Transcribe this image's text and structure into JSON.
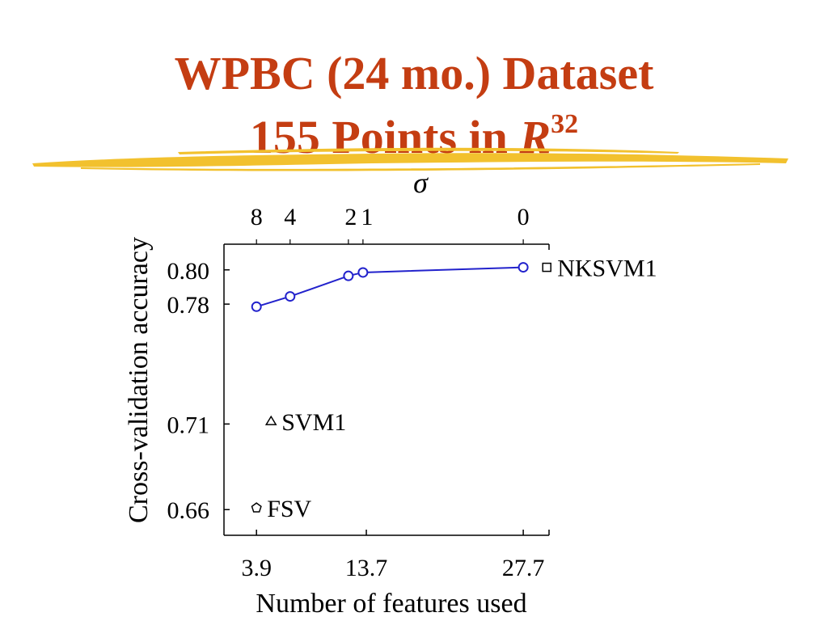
{
  "slide": {
    "title_line1": "WPBC (24 mo.) Dataset",
    "title_line2_prefix": "155 Points in ",
    "title_line2_var": "R",
    "title_line2_sup": "32",
    "highlight_color": "#f2c12e",
    "title_color": "#c43d12"
  },
  "chart_data": {
    "type": "line",
    "title": "",
    "xlabel": "Number of features used",
    "ylabel": "Cross-validation accuracy",
    "top_axis_label": "σ",
    "xlim": [
      1,
      30
    ],
    "ylim": [
      0.645,
      0.815
    ],
    "x_ticks": [
      {
        "value": 3.9,
        "label": "3.9"
      },
      {
        "value": 13.7,
        "label": "13.7"
      },
      {
        "value": 27.7,
        "label": "27.7"
      }
    ],
    "y_ticks": [
      {
        "value": 0.66,
        "label": "0.66"
      },
      {
        "value": 0.71,
        "label": "0.71"
      },
      {
        "value": 0.78,
        "label": "0.78"
      },
      {
        "value": 0.8,
        "label": "0.80"
      }
    ],
    "series": [
      {
        "color": "#2222cc",
        "marker": "circle",
        "x": [
          3.9,
          6.9,
          12.1,
          13.4,
          27.7
        ],
        "y": [
          0.7785,
          0.7845,
          0.7965,
          0.7985,
          0.8015
        ],
        "top_labels": [
          "8",
          "4",
          "2",
          "1",
          "0"
        ]
      }
    ],
    "points": [
      {
        "name": "NKSVM1",
        "x": 29.8,
        "y": 0.8015,
        "marker": "square"
      },
      {
        "name": "SVM1",
        "x": 5.2,
        "y": 0.7115,
        "marker": "triangle"
      },
      {
        "name": "FSV",
        "x": 3.9,
        "y": 0.661,
        "marker": "pentagon"
      }
    ],
    "grid": false,
    "legend": "none"
  }
}
